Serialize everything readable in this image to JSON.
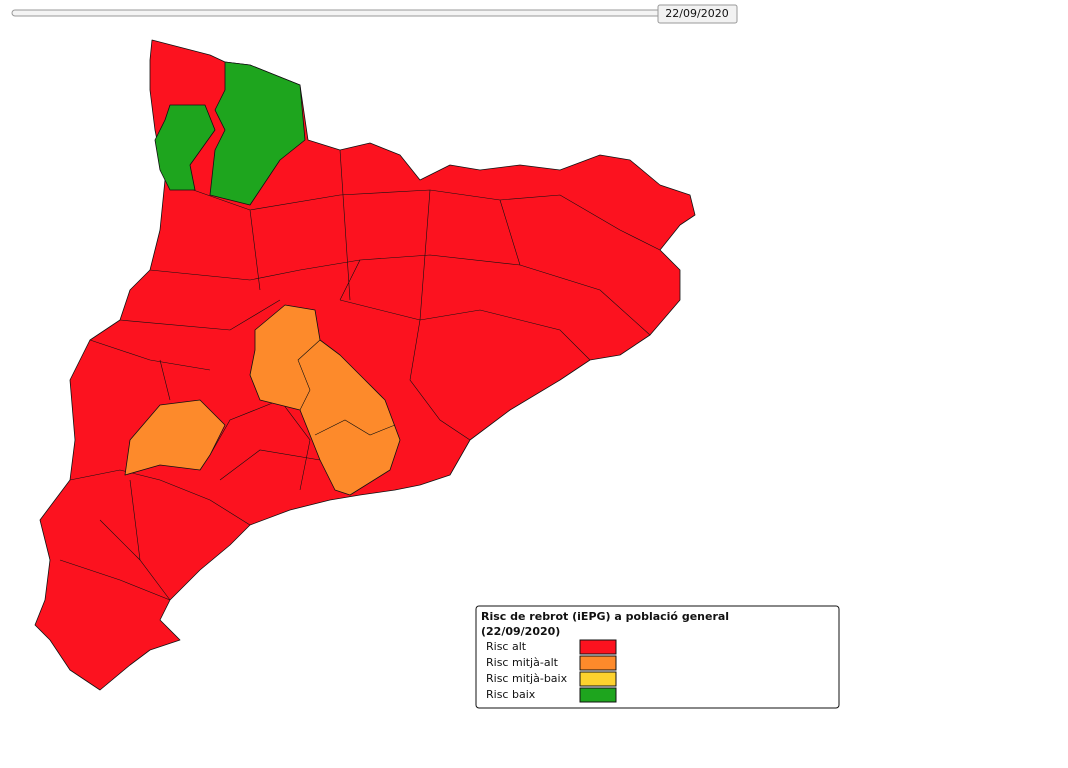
{
  "slider": {
    "date": "22/09/2020"
  },
  "legend": {
    "title": "Risc de rebrot (iEPG) a població general",
    "subtitle": "(22/09/2020)",
    "items": [
      {
        "label": "Risc alt",
        "color": "#fc121f"
      },
      {
        "label": "Risc mitjà-alt",
        "color": "#fd8a2b"
      },
      {
        "label": "Risc mitjà-baix",
        "color": "#fdd22e"
      },
      {
        "label": "Risc baix",
        "color": "#1ea51e"
      }
    ]
  }
}
